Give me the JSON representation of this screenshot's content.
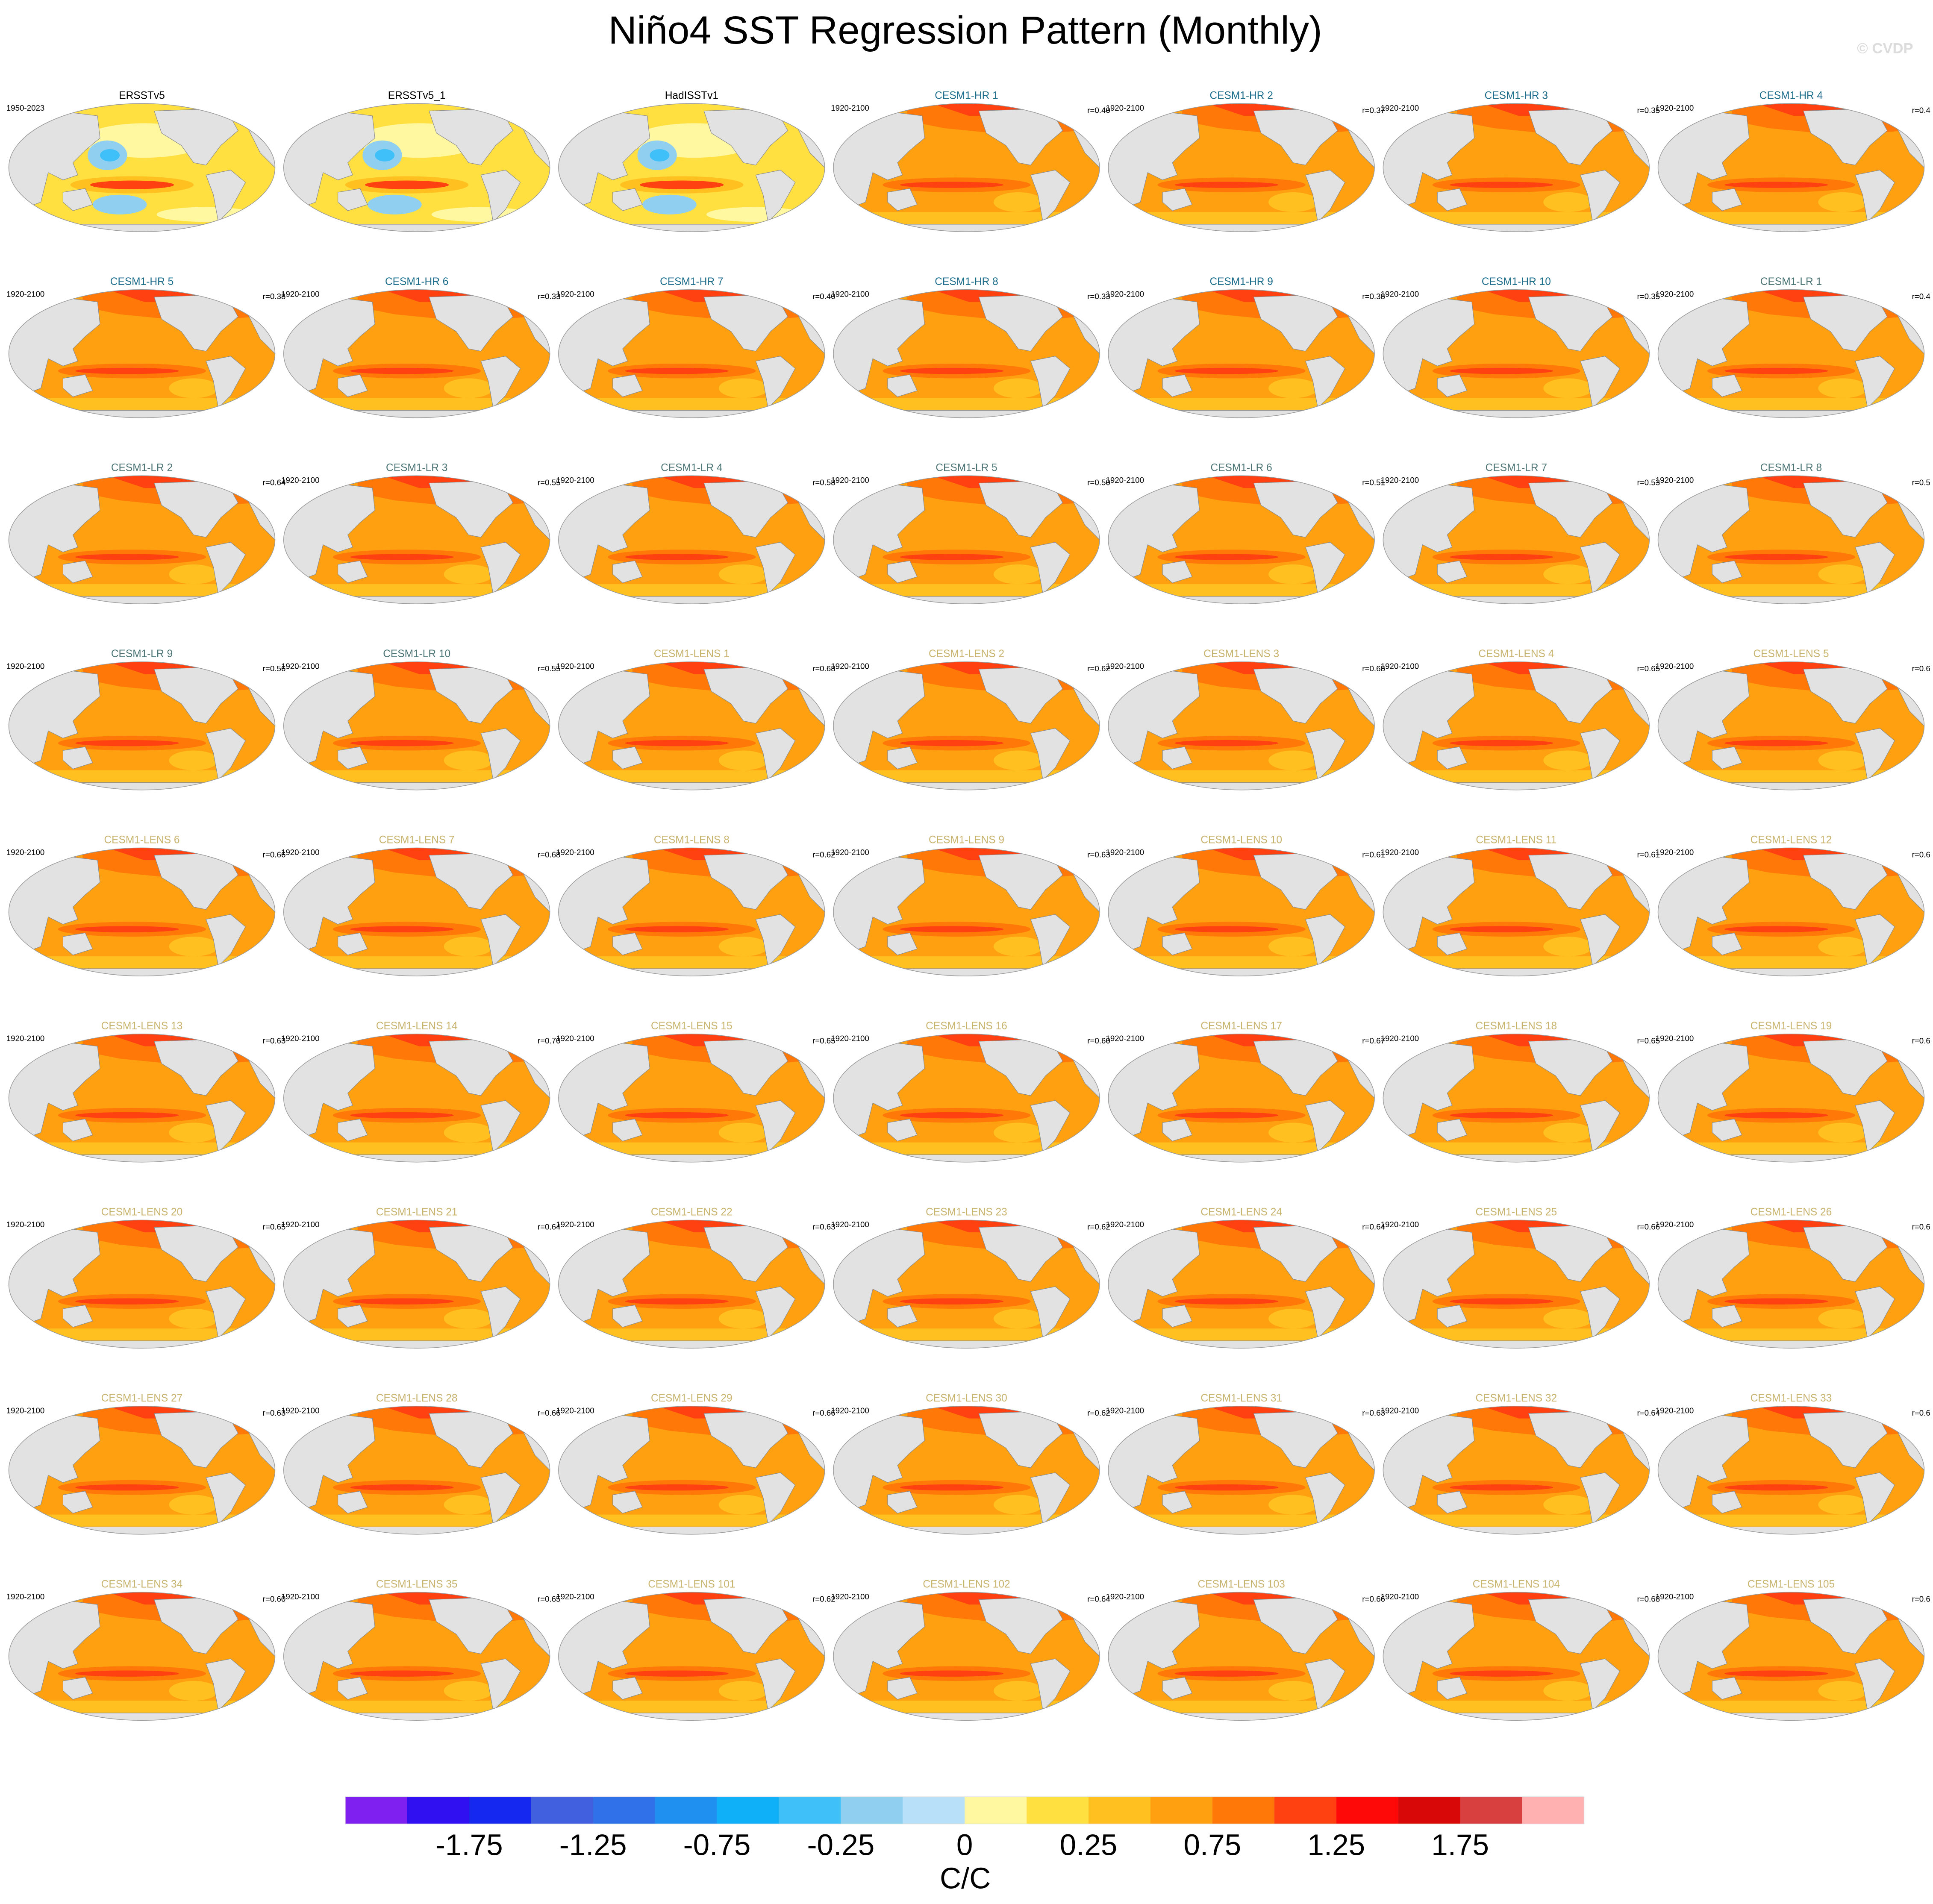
{
  "header": {
    "title": "Niño4 SST Regression Pattern (Monthly)",
    "watermark": "© CVDP"
  },
  "panels": [
    {
      "title": "ERSSTv5",
      "period": "1950-2023",
      "title_color": "#000000"
    },
    {
      "title": "ERSSTv5_1",
      "title_color": "#000000"
    },
    {
      "title": "HadISSTv1",
      "title_color": "#000000"
    },
    {
      "title": "CESM1-HR 1",
      "period": "1920-2100",
      "r": "r=0.40",
      "title_color": "#1f6e8c"
    },
    {
      "title": "CESM1-HR 2",
      "period": "1920-2100",
      "r": "r=0.37",
      "title_color": "#1f6e8c"
    },
    {
      "title": "CESM1-HR 3",
      "period": "1920-2100",
      "r": "r=0.35",
      "title_color": "#1f6e8c"
    },
    {
      "title": "CESM1-HR 4",
      "period": "1920-2100",
      "r": "r=0.4",
      "title_color": "#1f6e8c"
    },
    {
      "title": "CESM1-HR 5",
      "period": "1920-2100",
      "r": "r=0.38",
      "title_color": "#1f6e8c"
    },
    {
      "title": "CESM1-HR 6",
      "period": "1920-2100",
      "r": "r=0.33",
      "title_color": "#1f6e8c"
    },
    {
      "title": "CESM1-HR 7",
      "period": "1920-2100",
      "r": "r=0.40",
      "title_color": "#1f6e8c"
    },
    {
      "title": "CESM1-HR 8",
      "period": "1920-2100",
      "r": "r=0.33",
      "title_color": "#1f6e8c"
    },
    {
      "title": "CESM1-HR 9",
      "period": "1920-2100",
      "r": "r=0.38",
      "title_color": "#1f6e8c"
    },
    {
      "title": "CESM1-HR 10",
      "period": "1920-2100",
      "r": "r=0.35",
      "title_color": "#1f6e8c"
    },
    {
      "title": "CESM1-LR 1",
      "period": "1920-2100",
      "r": "r=0.4",
      "title_color": "#4d7575"
    },
    {
      "title": "CESM1-LR 2",
      "r": "r=0.64",
      "title_color": "#4d7575"
    },
    {
      "title": "CESM1-LR 3",
      "period": "1920-2100",
      "r": "r=0.55",
      "title_color": "#4d7575"
    },
    {
      "title": "CESM1-LR 4",
      "period": "1920-2100",
      "r": "r=0.58",
      "title_color": "#4d7575"
    },
    {
      "title": "CESM1-LR 5",
      "period": "1920-2100",
      "r": "r=0.50",
      "title_color": "#4d7575"
    },
    {
      "title": "CESM1-LR 6",
      "period": "1920-2100",
      "r": "r=0.51",
      "title_color": "#4d7575"
    },
    {
      "title": "CESM1-LR 7",
      "period": "1920-2100",
      "r": "r=0.53",
      "title_color": "#4d7575"
    },
    {
      "title": "CESM1-LR 8",
      "period": "1920-2100",
      "r": "r=0.5",
      "title_color": "#4d7575"
    },
    {
      "title": "CESM1-LR 9",
      "period": "1920-2100",
      "r": "r=0.56",
      "title_color": "#4d7575"
    },
    {
      "title": "CESM1-LR 10",
      "period": "1920-2100",
      "r": "r=0.55",
      "title_color": "#4d7575"
    },
    {
      "title": "CESM1-LENS 1",
      "period": "1920-2100",
      "r": "r=0.68",
      "title_color": "#c8b46e"
    },
    {
      "title": "CESM1-LENS 2",
      "period": "1920-2100",
      "r": "r=0.62",
      "title_color": "#c8b46e"
    },
    {
      "title": "CESM1-LENS 3",
      "period": "1920-2100",
      "r": "r=0.68",
      "title_color": "#c8b46e"
    },
    {
      "title": "CESM1-LENS 4",
      "period": "1920-2100",
      "r": "r=0.65",
      "title_color": "#c8b46e"
    },
    {
      "title": "CESM1-LENS 5",
      "period": "1920-2100",
      "r": "r=0.6",
      "title_color": "#c8b46e"
    },
    {
      "title": "CESM1-LENS 6",
      "period": "1920-2100",
      "r": "r=0.66",
      "title_color": "#c8b46e"
    },
    {
      "title": "CESM1-LENS 7",
      "period": "1920-2100",
      "r": "r=0.68",
      "title_color": "#c8b46e"
    },
    {
      "title": "CESM1-LENS 8",
      "period": "1920-2100",
      "r": "r=0.62",
      "title_color": "#c8b46e"
    },
    {
      "title": "CESM1-LENS 9",
      "period": "1920-2100",
      "r": "r=0.63",
      "title_color": "#c8b46e"
    },
    {
      "title": "CESM1-LENS 10",
      "period": "1920-2100",
      "r": "r=0.61",
      "title_color": "#c8b46e"
    },
    {
      "title": "CESM1-LENS 11",
      "period": "1920-2100",
      "r": "r=0.61",
      "title_color": "#c8b46e"
    },
    {
      "title": "CESM1-LENS 12",
      "period": "1920-2100",
      "r": "r=0.6",
      "title_color": "#c8b46e"
    },
    {
      "title": "CESM1-LENS 13",
      "period": "1920-2100",
      "r": "r=0.63",
      "title_color": "#c8b46e"
    },
    {
      "title": "CESM1-LENS 14",
      "period": "1920-2100",
      "r": "r=0.70",
      "title_color": "#c8b46e"
    },
    {
      "title": "CESM1-LENS 15",
      "period": "1920-2100",
      "r": "r=0.65",
      "title_color": "#c8b46e"
    },
    {
      "title": "CESM1-LENS 16",
      "period": "1920-2100",
      "r": "r=0.60",
      "title_color": "#c8b46e"
    },
    {
      "title": "CESM1-LENS 17",
      "period": "1920-2100",
      "r": "r=0.67",
      "title_color": "#c8b46e"
    },
    {
      "title": "CESM1-LENS 18",
      "period": "1920-2100",
      "r": "r=0.65",
      "title_color": "#c8b46e"
    },
    {
      "title": "CESM1-LENS 19",
      "period": "1920-2100",
      "r": "r=0.6",
      "title_color": "#c8b46e"
    },
    {
      "title": "CESM1-LENS 20",
      "period": "1920-2100",
      "r": "r=0.65",
      "title_color": "#c8b46e"
    },
    {
      "title": "CESM1-LENS 21",
      "period": "1920-2100",
      "r": "r=0.64",
      "title_color": "#c8b46e"
    },
    {
      "title": "CESM1-LENS 22",
      "period": "1920-2100",
      "r": "r=0.63",
      "title_color": "#c8b46e"
    },
    {
      "title": "CESM1-LENS 23",
      "period": "1920-2100",
      "r": "r=0.62",
      "title_color": "#c8b46e"
    },
    {
      "title": "CESM1-LENS 24",
      "period": "1920-2100",
      "r": "r=0.64",
      "title_color": "#c8b46e"
    },
    {
      "title": "CESM1-LENS 25",
      "period": "1920-2100",
      "r": "r=0.66",
      "title_color": "#c8b46e"
    },
    {
      "title": "CESM1-LENS 26",
      "period": "1920-2100",
      "r": "r=0.6",
      "title_color": "#c8b46e"
    },
    {
      "title": "CESM1-LENS 27",
      "period": "1920-2100",
      "r": "r=0.63",
      "title_color": "#c8b46e"
    },
    {
      "title": "CESM1-LENS 28",
      "period": "1920-2100",
      "r": "r=0.66",
      "title_color": "#c8b46e"
    },
    {
      "title": "CESM1-LENS 29",
      "period": "1920-2100",
      "r": "r=0.66",
      "title_color": "#c8b46e"
    },
    {
      "title": "CESM1-LENS 30",
      "period": "1920-2100",
      "r": "r=0.62",
      "title_color": "#c8b46e"
    },
    {
      "title": "CESM1-LENS 31",
      "period": "1920-2100",
      "r": "r=0.63",
      "title_color": "#c8b46e"
    },
    {
      "title": "CESM1-LENS 32",
      "period": "1920-2100",
      "r": "r=0.64",
      "title_color": "#c8b46e"
    },
    {
      "title": "CESM1-LENS 33",
      "period": "1920-2100",
      "r": "r=0.6",
      "title_color": "#c8b46e"
    },
    {
      "title": "CESM1-LENS 34",
      "period": "1920-2100",
      "r": "r=0.60",
      "title_color": "#c8b46e"
    },
    {
      "title": "CESM1-LENS 35",
      "period": "1920-2100",
      "r": "r=0.65",
      "title_color": "#c8b46e"
    },
    {
      "title": "CESM1-LENS 101",
      "period": "1920-2100",
      "r": "r=0.62",
      "title_color": "#c8b46e"
    },
    {
      "title": "CESM1-LENS 102",
      "period": "1920-2100",
      "r": "r=0.64",
      "title_color": "#c8b46e"
    },
    {
      "title": "CESM1-LENS 103",
      "period": "1920-2100",
      "r": "r=0.66",
      "title_color": "#c8b46e"
    },
    {
      "title": "CESM1-LENS 104",
      "period": "1920-2100",
      "r": "r=0.68",
      "title_color": "#c8b46e"
    },
    {
      "title": "CESM1-LENS 105",
      "period": "1920-2100",
      "r": "r=0.6",
      "title_color": "#c8b46e"
    }
  ],
  "colorbar": {
    "colors": [
      "#8020f0",
      "#3010f0",
      "#1428f0",
      "#4060e0",
      "#3070e8",
      "#2090f0",
      "#10b0f8",
      "#40c0f8",
      "#90cff0",
      "#b8e0f8",
      "#fff8a0",
      "#ffe040",
      "#ffc020",
      "#ffa010",
      "#ff7808",
      "#ff4010",
      "#ff0808",
      "#d80808",
      "#d84040",
      "#ffb0b0"
    ],
    "ticks": [
      -1.75,
      -1.25,
      -0.75,
      -0.25,
      0,
      0.25,
      0.75,
      1.25,
      1.75
    ],
    "unit": "C/C"
  }
}
